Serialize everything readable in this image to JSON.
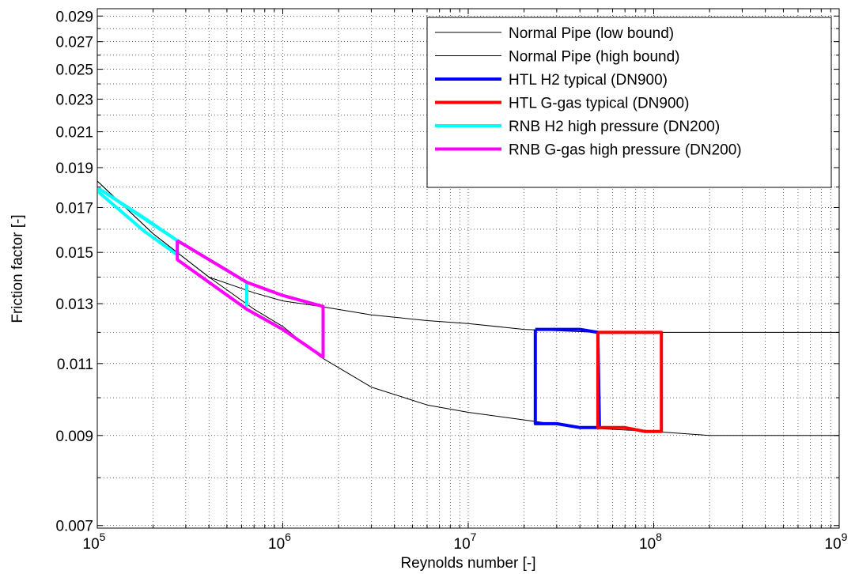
{
  "chart_data": {
    "type": "line",
    "xlabel": "Reynolds number  [-]",
    "ylabel": "Friction factor  [-]",
    "x_scale": "log",
    "y_scale": "log",
    "xlim": [
      100000,
      1000000000
    ],
    "ylim": [
      0.00695,
      0.0296
    ],
    "x_ticks": [
      {
        "value": 100000,
        "base": "10",
        "exp": "5"
      },
      {
        "value": 1000000,
        "base": "10",
        "exp": "6"
      },
      {
        "value": 10000000,
        "base": "10",
        "exp": "7"
      },
      {
        "value": 100000000,
        "base": "10",
        "exp": "8"
      },
      {
        "value": 1000000000,
        "base": "10",
        "exp": "9"
      }
    ],
    "y_ticks": [
      {
        "value": 0.007,
        "label": "0.007"
      },
      {
        "value": 0.009,
        "label": "0.009"
      },
      {
        "value": 0.011,
        "label": "0.011"
      },
      {
        "value": 0.013,
        "label": "0.013"
      },
      {
        "value": 0.015,
        "label": "0.015"
      },
      {
        "value": 0.017,
        "label": "0.017"
      },
      {
        "value": 0.019,
        "label": "0.019"
      },
      {
        "value": 0.021,
        "label": "0.021"
      },
      {
        "value": 0.023,
        "label": "0.023"
      },
      {
        "value": 0.025,
        "label": "0.025"
      },
      {
        "value": 0.027,
        "label": "0.027"
      },
      {
        "value": 0.029,
        "label": "0.029"
      }
    ],
    "grid": true,
    "legend_position": "top-right",
    "series": [
      {
        "name": "Normal Pipe (low bound)",
        "color": "#000000",
        "width": 1,
        "points": [
          [
            100000,
            0.0183
          ],
          [
            200000,
            0.0158
          ],
          [
            400000,
            0.014
          ],
          [
            700000,
            0.0128
          ],
          [
            1000000,
            0.0122
          ],
          [
            1600000,
            0.0112
          ],
          [
            3000000,
            0.0103
          ],
          [
            6000000,
            0.0098
          ],
          [
            10000000,
            0.0096
          ],
          [
            20000000,
            0.0094
          ],
          [
            40000000,
            0.0092
          ],
          [
            100000000,
            0.0091
          ],
          [
            200000000,
            0.009
          ],
          [
            1000000000,
            0.009
          ]
        ]
      },
      {
        "name": "Normal Pipe (high bound)",
        "color": "#000000",
        "width": 1,
        "points": [
          [
            100000,
            0.0183
          ],
          [
            200000,
            0.0158
          ],
          [
            400000,
            0.014
          ],
          [
            700000,
            0.0134
          ],
          [
            1000000,
            0.0131
          ],
          [
            1600000,
            0.0129
          ],
          [
            3000000,
            0.0126
          ],
          [
            6000000,
            0.0124
          ],
          [
            10000000,
            0.0123
          ],
          [
            20000000,
            0.0121
          ],
          [
            50000000,
            0.012
          ],
          [
            100000000,
            0.012
          ],
          [
            1000000000,
            0.012
          ]
        ]
      },
      {
        "name": "HTL H2 typical (DN900)",
        "color": "#0000ff",
        "width": 4,
        "points": [
          [
            23000000,
            0.0121
          ],
          [
            40000000,
            0.0121
          ],
          [
            50000000,
            0.012
          ],
          [
            51000000,
            0.0092
          ],
          [
            40000000,
            0.0092
          ],
          [
            30000000,
            0.0093
          ],
          [
            23000000,
            0.0093
          ],
          [
            23000000,
            0.0121
          ]
        ]
      },
      {
        "name": "HTL G-gas typical (DN900)",
        "color": "#ff0000",
        "width": 4,
        "points": [
          [
            50000000,
            0.012
          ],
          [
            110000000,
            0.012
          ],
          [
            110000000,
            0.0091
          ],
          [
            90000000,
            0.0091
          ],
          [
            70000000,
            0.0092
          ],
          [
            50000000,
            0.0092
          ],
          [
            50000000,
            0.012
          ]
        ]
      },
      {
        "name": "RNB H2 high pressure (DN200)",
        "color": "#00ffff",
        "width": 4,
        "points": [
          [
            103000,
            0.0179
          ],
          [
            180000,
            0.0165
          ],
          [
            270000,
            0.0155
          ],
          [
            270000,
            0.0149
          ],
          [
            180000,
            0.0159
          ],
          [
            103000,
            0.0177
          ],
          [
            103000,
            0.0179
          ],
          [
            270000,
            0.0155
          ],
          [
            640000,
            0.0138
          ],
          [
            640000,
            0.0129
          ]
        ]
      },
      {
        "name": "RNB G-gas high pressure (DN200)",
        "color": "#ff00ff",
        "width": 4,
        "points": [
          [
            270000,
            0.0155
          ],
          [
            640000,
            0.0138
          ],
          [
            1000000,
            0.0133
          ],
          [
            1650000,
            0.0129
          ],
          [
            1650000,
            0.0112
          ],
          [
            1000000,
            0.0121
          ],
          [
            640000,
            0.0128
          ],
          [
            400000,
            0.0138
          ],
          [
            270000,
            0.0147
          ],
          [
            270000,
            0.0155
          ]
        ]
      }
    ]
  }
}
